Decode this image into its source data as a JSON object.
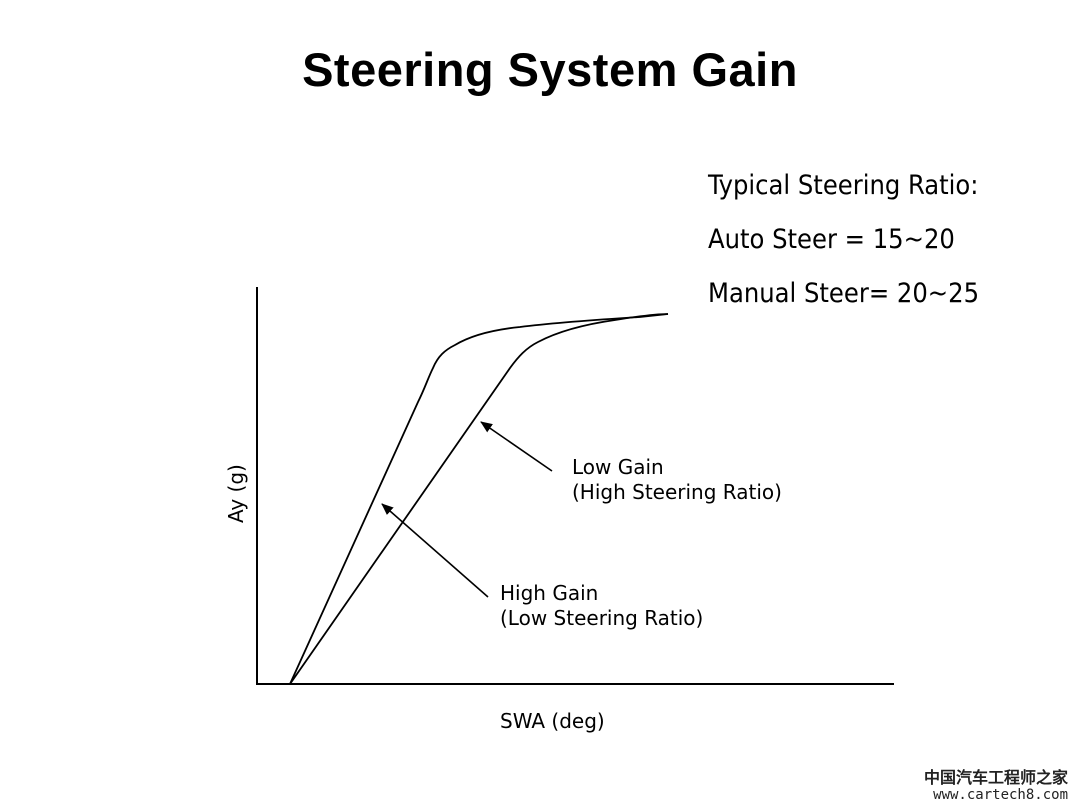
{
  "title": "Steering System Gain",
  "notes": {
    "line1": "Typical Steering Ratio:",
    "line2": "Auto Steer = 15~20",
    "line3": "Manual Steer= 20~25"
  },
  "axes": {
    "y_label": "Ay (g)",
    "x_label": "SWA (deg)"
  },
  "curves": {
    "low_gain": {
      "line1": "Low Gain",
      "line2": "(High Steering Ratio)"
    },
    "high_gain": {
      "line1": "High Gain",
      "line2": "(Low Steering Ratio)"
    }
  },
  "watermark": {
    "line1": "中国汽车工程师之家",
    "line2": "www.cartech8.com"
  }
}
